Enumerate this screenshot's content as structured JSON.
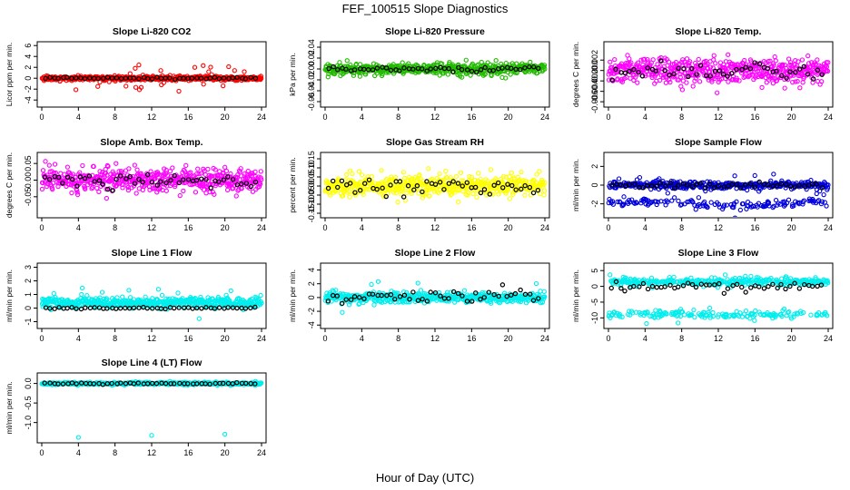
{
  "figure": {
    "title": "FEF_100515  Slope Diagnostics",
    "xlabel": "Hour of Day (UTC)"
  },
  "chart_data": [
    {
      "type": "scatter",
      "title": "Slope Li-820 CO2",
      "ylabel": "Licor ppm per min.",
      "color": "#ff0000",
      "xlim": [
        0,
        24
      ],
      "ylim": [
        -4.8,
        6.2
      ],
      "xticks": [
        0,
        4,
        8,
        12,
        16,
        20,
        24
      ],
      "yticks": [
        -4,
        -2,
        0,
        2,
        4,
        6
      ],
      "yticklabels": [
        "-4",
        "-2",
        "0",
        "2",
        "4",
        "6"
      ],
      "spread": 0.35,
      "outlier_spread": 2.5,
      "outlier_frac": 0.06,
      "marked_values_spread": 0.15
    },
    {
      "type": "scatter",
      "title": "Slope Li-820 Pressure",
      "ylabel": "kPa per min.",
      "color": "#22bb00",
      "xlim": [
        0,
        24
      ],
      "ylim": [
        -0.065,
        0.045
      ],
      "xticks": [
        0,
        4,
        8,
        12,
        16,
        20,
        24
      ],
      "yticks": [
        -0.06,
        -0.04,
        -0.02,
        0,
        0.02,
        0.04
      ],
      "yticklabels": [
        "-0.06",
        "-0.04",
        "-0.02",
        "0.00",
        "0.02",
        "0.04"
      ],
      "spread": 0.009,
      "outlier_spread": 0.02,
      "outlier_frac": 0.03,
      "marked_values_spread": 0.004
    },
    {
      "type": "scatter",
      "title": "Slope Li-820 Temp.",
      "ylabel": "degrees C per min.",
      "color": "#ff00ff",
      "xlim": [
        0,
        24
      ],
      "ylim": [
        -0.0065,
        0.005
      ],
      "xticks": [
        0,
        4,
        8,
        12,
        16,
        20,
        24
      ],
      "yticks": [
        -0.006,
        -0.004,
        -0.002,
        0,
        0.002
      ],
      "yticklabels": [
        "-0.006",
        "-0.004",
        "-0.002",
        "0.000",
        "0.002"
      ],
      "spread": 0.0022,
      "outlier_spread": 0.0035,
      "outlier_frac": 0.03,
      "marked_values_spread": 0.0012
    },
    {
      "type": "scatter",
      "title": "Slope Amb. Box Temp.",
      "ylabel": "degrees C per min.",
      "color": "#ff00ff",
      "xlim": [
        0,
        24
      ],
      "ylim": [
        -0.105,
        0.075
      ],
      "xticks": [
        0,
        4,
        8,
        12,
        16,
        20,
        24
      ],
      "yticks": [
        -0.05,
        0,
        0.05
      ],
      "yticklabels": [
        "-0.05",
        "0.00",
        "0.05"
      ],
      "spread": 0.03,
      "outlier_spread": 0.06,
      "outlier_frac": 0.03,
      "marked_values_spread": 0.02
    },
    {
      "type": "scatter",
      "title": "Slope Gas Stream RH",
      "ylabel": "percent per min.",
      "color": "#ffff00",
      "xlim": [
        0,
        24
      ],
      "ylim": [
        -0.16,
        0.17
      ],
      "xticks": [
        0,
        4,
        8,
        12,
        16,
        20,
        24
      ],
      "yticks": [
        -0.15,
        -0.1,
        -0.05,
        0,
        0.05,
        0.1,
        0.15
      ],
      "yticklabels": [
        "-0.15",
        "-0.10",
        "-0.05",
        "0.00",
        "0.05",
        "0.10",
        "0.15"
      ],
      "spread": 0.05,
      "outlier_spread": 0.1,
      "outlier_frac": 0.03,
      "marked_values_spread": 0.04
    },
    {
      "type": "scatter",
      "title": "Slope Sample Flow",
      "ylabel": "ml/min per min.",
      "color": "#0000dd",
      "xlim": [
        0,
        24
      ],
      "ylim": [
        -3.2,
        3.2
      ],
      "xticks": [
        0,
        4,
        8,
        12,
        16,
        20,
        24
      ],
      "yticks": [
        -2,
        0,
        2
      ],
      "yticklabels": [
        "-2",
        "0",
        "2"
      ],
      "spread": 0.35,
      "outlier_spread": 1.5,
      "outlier_frac": 0.05,
      "second_band": -2.0,
      "marked_values_spread": 0.25
    },
    {
      "type": "scatter",
      "title": "Slope Line 1 Flow",
      "ylabel": "ml/min per min.",
      "color": "#00eeee",
      "xlim": [
        0,
        24
      ],
      "ylim": [
        -1.3,
        3.1
      ],
      "xticks": [
        0,
        4,
        8,
        12,
        16,
        20,
        24
      ],
      "yticks": [
        -1,
        0,
        1,
        2,
        3
      ],
      "yticklabels": [
        "-1",
        "0",
        "1",
        "2",
        "3"
      ],
      "spread": 0.35,
      "outlier_spread": 1.2,
      "outlier_frac": 0.03,
      "center": 0.4,
      "marked_center": 0.0,
      "marked_values_spread": 0.05
    },
    {
      "type": "scatter",
      "title": "Slope Line 2 Flow",
      "ylabel": "ml/min per min.",
      "color": "#00eeee",
      "xlim": [
        0,
        24
      ],
      "ylim": [
        -4.1,
        4.6
      ],
      "xticks": [
        0,
        4,
        8,
        12,
        16,
        20,
        24
      ],
      "yticks": [
        -4,
        -2,
        0,
        2,
        4
      ],
      "yticklabels": [
        "-4",
        "-2",
        "0",
        "2",
        "4"
      ],
      "spread": 0.7,
      "outlier_spread": 2.5,
      "outlier_frac": 0.03,
      "marked_values_spread": 0.9
    },
    {
      "type": "scatter",
      "title": "Slope Line 3 Flow",
      "ylabel": "ml/min per min.",
      "color": "#00eeee",
      "xlim": [
        0,
        24
      ],
      "ylim": [
        -12.5,
        6.5
      ],
      "xticks": [
        0,
        4,
        8,
        12,
        16,
        20,
        24
      ],
      "yticks": [
        -10,
        -5,
        0,
        5
      ],
      "yticklabels": [
        "-10",
        "-5",
        "0",
        "5"
      ],
      "spread": 1.1,
      "outlier_spread": 3,
      "outlier_frac": 0.03,
      "center": 1.5,
      "second_band": -9,
      "marked_center": 0.0,
      "marked_values_spread": 1.2
    },
    {
      "type": "scatter",
      "title": "Slope Line 4 (LT) Flow",
      "ylabel": "ml/min per min.",
      "color": "#00eeee",
      "xlim": [
        0,
        24
      ],
      "ylim": [
        -1.45,
        0.2
      ],
      "xticks": [
        0,
        4,
        8,
        12,
        16,
        20,
        24
      ],
      "yticks": [
        -1,
        -0.5,
        0
      ],
      "yticklabels": [
        "-1.0",
        "-0.5",
        "0.0"
      ],
      "spread": 0.03,
      "outlier_spread": 0.05,
      "outlier_frac": 0.02,
      "low_outliers": [
        [
          4,
          -1.38
        ],
        [
          12,
          -1.33
        ],
        [
          20,
          -1.3
        ]
      ],
      "marked_values_spread": 0.02
    }
  ]
}
